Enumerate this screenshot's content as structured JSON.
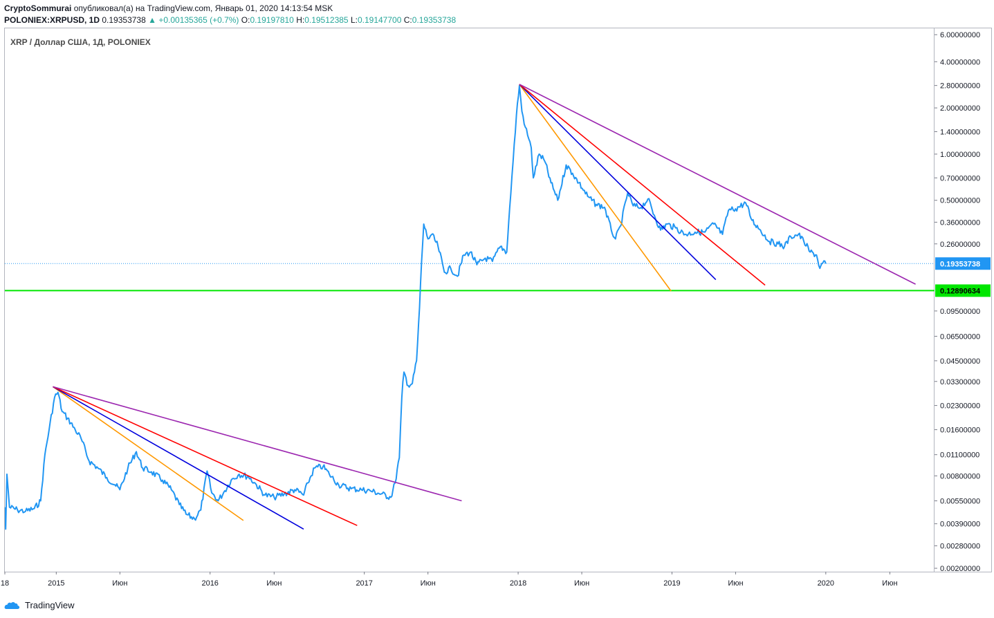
{
  "header": {
    "author": "CryptoSommurai",
    "published_text": "опубликовал(а) на TradingView.com, Январь 01, 2020 14:13:54 MSK",
    "symbol": "POLONIEX:XRPUSD, 1D",
    "last": "0.19353738",
    "change": "▲ +0.00135365 (+0.7%)",
    "o_label": "O:",
    "o_value": "0.19197810",
    "h_label": "H:",
    "h_value": "0.19512385",
    "l_label": "L:",
    "l_value": "0.19147700",
    "c_label": "C:",
    "c_value": "0.19353738"
  },
  "chart_title": "XRP / Доллар США, 1Д, POLONIEX",
  "footer": {
    "brand": "TradingView",
    "logo_icon": "tradingview-logo-icon"
  },
  "chart_data": {
    "type": "line",
    "title": "XRP / Доллар США, 1Д, POLONIEX",
    "y_scale": "log",
    "ylim": [
      0.0019,
      6.6
    ],
    "xlim": [
      "2014-09-01",
      "2020-09-15"
    ],
    "line_color": "#2196f3",
    "y_ticks": [
      "6.00000000",
      "4.00000000",
      "2.80000000",
      "2.00000000",
      "1.40000000",
      "1.00000000",
      "0.70000000",
      "0.50000000",
      "0.36000000",
      "0.26000000",
      "0.19353738",
      "0.12890634",
      "0.09500000",
      "0.06500000",
      "0.04500000",
      "0.03300000",
      "0.02300000",
      "0.01600000",
      "0.01100000",
      "0.00800000",
      "0.00550000",
      "0.00390000",
      "0.00280000",
      "0.00200000"
    ],
    "x_ticks": [
      {
        "date": "2014-09-01",
        "label": "18"
      },
      {
        "date": "2015-01-01",
        "label": "2015"
      },
      {
        "date": "2015-06-01",
        "label": "Июн"
      },
      {
        "date": "2016-01-01",
        "label": "2016"
      },
      {
        "date": "2016-06-01",
        "label": "Июн"
      },
      {
        "date": "2017-01-01",
        "label": "2017"
      },
      {
        "date": "2017-06-01",
        "label": "Июн"
      },
      {
        "date": "2018-01-01",
        "label": "2018"
      },
      {
        "date": "2018-06-01",
        "label": "Июн"
      },
      {
        "date": "2019-01-01",
        "label": "2019"
      },
      {
        "date": "2019-06-01",
        "label": "Июн"
      },
      {
        "date": "2020-01-01",
        "label": "2020"
      },
      {
        "date": "2020-06-01",
        "label": "Июн"
      }
    ],
    "price_series": [
      [
        "2014-09-01",
        0.005
      ],
      [
        "2014-09-03",
        0.0036
      ],
      [
        "2014-09-06",
        0.0082
      ],
      [
        "2014-09-12",
        0.005
      ],
      [
        "2014-10-01",
        0.0048
      ],
      [
        "2014-10-20",
        0.0047
      ],
      [
        "2014-11-10",
        0.0049
      ],
      [
        "2014-11-25",
        0.0055
      ],
      [
        "2014-12-05",
        0.011
      ],
      [
        "2014-12-15",
        0.016
      ],
      [
        "2014-12-28",
        0.026
      ],
      [
        "2015-01-05",
        0.028
      ],
      [
        "2015-01-15",
        0.021
      ],
      [
        "2015-01-28",
        0.019
      ],
      [
        "2015-02-15",
        0.016
      ],
      [
        "2015-03-01",
        0.014
      ],
      [
        "2015-03-20",
        0.01
      ],
      [
        "2015-04-10",
        0.009
      ],
      [
        "2015-05-01",
        0.0078
      ],
      [
        "2015-05-20",
        0.007
      ],
      [
        "2015-06-01",
        0.0065
      ],
      [
        "2015-06-20",
        0.009
      ],
      [
        "2015-07-10",
        0.0115
      ],
      [
        "2015-07-25",
        0.009
      ],
      [
        "2015-08-15",
        0.0085
      ],
      [
        "2015-09-10",
        0.0075
      ],
      [
        "2015-10-01",
        0.0065
      ],
      [
        "2015-10-20",
        0.0052
      ],
      [
        "2015-11-05",
        0.0045
      ],
      [
        "2015-11-25",
        0.0042
      ],
      [
        "2015-12-10",
        0.0048
      ],
      [
        "2015-12-25",
        0.0086
      ],
      [
        "2016-01-05",
        0.0062
      ],
      [
        "2016-01-20",
        0.0055
      ],
      [
        "2016-02-05",
        0.0064
      ],
      [
        "2016-02-20",
        0.0075
      ],
      [
        "2016-03-10",
        0.0082
      ],
      [
        "2016-04-01",
        0.0079
      ],
      [
        "2016-04-20",
        0.007
      ],
      [
        "2016-05-10",
        0.006
      ],
      [
        "2016-06-01",
        0.0058
      ],
      [
        "2016-06-25",
        0.0061
      ],
      [
        "2016-07-20",
        0.0065
      ],
      [
        "2016-08-10",
        0.006
      ],
      [
        "2016-08-20",
        0.0072
      ],
      [
        "2016-09-05",
        0.009
      ],
      [
        "2016-09-25",
        0.0092
      ],
      [
        "2016-10-10",
        0.0082
      ],
      [
        "2016-11-01",
        0.007
      ],
      [
        "2016-12-01",
        0.0066
      ],
      [
        "2016-12-25",
        0.0065
      ],
      [
        "2017-01-15",
        0.0064
      ],
      [
        "2017-02-10",
        0.0061
      ],
      [
        "2017-03-05",
        0.0058
      ],
      [
        "2017-03-15",
        0.0072
      ],
      [
        "2017-03-25",
        0.0105
      ],
      [
        "2017-03-31",
        0.026
      ],
      [
        "2017-04-05",
        0.038
      ],
      [
        "2017-04-15",
        0.031
      ],
      [
        "2017-04-25",
        0.032
      ],
      [
        "2017-05-05",
        0.045
      ],
      [
        "2017-05-12",
        0.1
      ],
      [
        "2017-05-17",
        0.2
      ],
      [
        "2017-05-22",
        0.35
      ],
      [
        "2017-06-01",
        0.28
      ],
      [
        "2017-06-10",
        0.3
      ],
      [
        "2017-06-25",
        0.25
      ],
      [
        "2017-07-10",
        0.17
      ],
      [
        "2017-07-25",
        0.18
      ],
      [
        "2017-08-10",
        0.16
      ],
      [
        "2017-08-25",
        0.22
      ],
      [
        "2017-09-10",
        0.23
      ],
      [
        "2017-09-25",
        0.19
      ],
      [
        "2017-10-15",
        0.21
      ],
      [
        "2017-11-01",
        0.2
      ],
      [
        "2017-11-20",
        0.25
      ],
      [
        "2017-12-05",
        0.23
      ],
      [
        "2017-12-12",
        0.45
      ],
      [
        "2017-12-20",
        0.9
      ],
      [
        "2017-12-28",
        1.8
      ],
      [
        "2018-01-04",
        2.8
      ],
      [
        "2018-01-10",
        1.9
      ],
      [
        "2018-01-18",
        1.5
      ],
      [
        "2018-02-01",
        1.1
      ],
      [
        "2018-02-06",
        0.7
      ],
      [
        "2018-02-20",
        1.0
      ],
      [
        "2018-03-05",
        0.9
      ],
      [
        "2018-03-20",
        0.65
      ],
      [
        "2018-04-05",
        0.5
      ],
      [
        "2018-04-25",
        0.85
      ],
      [
        "2018-05-10",
        0.75
      ],
      [
        "2018-05-25",
        0.65
      ],
      [
        "2018-06-15",
        0.53
      ],
      [
        "2018-07-05",
        0.47
      ],
      [
        "2018-07-25",
        0.45
      ],
      [
        "2018-08-10",
        0.32
      ],
      [
        "2018-08-20",
        0.28
      ],
      [
        "2018-09-01",
        0.34
      ],
      [
        "2018-09-18",
        0.56
      ],
      [
        "2018-10-01",
        0.46
      ],
      [
        "2018-10-20",
        0.45
      ],
      [
        "2018-11-05",
        0.51
      ],
      [
        "2018-11-20",
        0.4
      ],
      [
        "2018-12-05",
        0.32
      ],
      [
        "2018-12-20",
        0.35
      ],
      [
        "2019-01-10",
        0.33
      ],
      [
        "2019-02-01",
        0.3
      ],
      [
        "2019-02-25",
        0.31
      ],
      [
        "2019-03-20",
        0.31
      ],
      [
        "2019-04-10",
        0.35
      ],
      [
        "2019-05-01",
        0.3
      ],
      [
        "2019-05-15",
        0.43
      ],
      [
        "2019-06-01",
        0.44
      ],
      [
        "2019-06-25",
        0.48
      ],
      [
        "2019-07-10",
        0.37
      ],
      [
        "2019-07-30",
        0.32
      ],
      [
        "2019-08-20",
        0.27
      ],
      [
        "2019-09-10",
        0.26
      ],
      [
        "2019-09-25",
        0.25
      ],
      [
        "2019-10-10",
        0.29
      ],
      [
        "2019-10-28",
        0.3
      ],
      [
        "2019-11-10",
        0.27
      ],
      [
        "2019-11-25",
        0.23
      ],
      [
        "2019-12-10",
        0.22
      ],
      [
        "2019-12-18",
        0.18
      ],
      [
        "2019-12-25",
        0.195
      ],
      [
        "2020-01-01",
        0.1935
      ]
    ],
    "horizontal_lines": [
      {
        "value": 0.19353738,
        "color": "#2196f3",
        "style": "dotted",
        "label": "0.19353738"
      },
      {
        "value": 0.12890634,
        "color": "#00e600",
        "style": "solid",
        "label": "0.12890634"
      }
    ],
    "trendlines": [
      {
        "color": "#ff9800",
        "from": [
          "2014-12-24",
          0.0305
        ],
        "to": [
          "2016-03-20",
          0.0041
        ]
      },
      {
        "color": "#0000dd",
        "from": [
          "2014-12-24",
          0.0305
        ],
        "to": [
          "2016-08-10",
          0.0036
        ]
      },
      {
        "color": "#ff0000",
        "from": [
          "2014-12-24",
          0.0305
        ],
        "to": [
          "2016-12-15",
          0.0038
        ]
      },
      {
        "color": "#9c27b0",
        "from": [
          "2014-12-24",
          0.0305
        ],
        "to": [
          "2017-08-20",
          0.0055
        ]
      },
      {
        "color": "#ff9800",
        "from": [
          "2018-01-04",
          2.85
        ],
        "to": [
          "2018-12-30",
          0.128
        ]
      },
      {
        "color": "#0000dd",
        "from": [
          "2018-01-04",
          2.85
        ],
        "to": [
          "2019-04-15",
          0.152
        ]
      },
      {
        "color": "#ff0000",
        "from": [
          "2018-01-04",
          2.85
        ],
        "to": [
          "2019-08-10",
          0.14
        ]
      },
      {
        "color": "#9c27b0",
        "from": [
          "2018-01-04",
          2.85
        ],
        "to": [
          "2020-08-01",
          0.142
        ]
      }
    ]
  }
}
